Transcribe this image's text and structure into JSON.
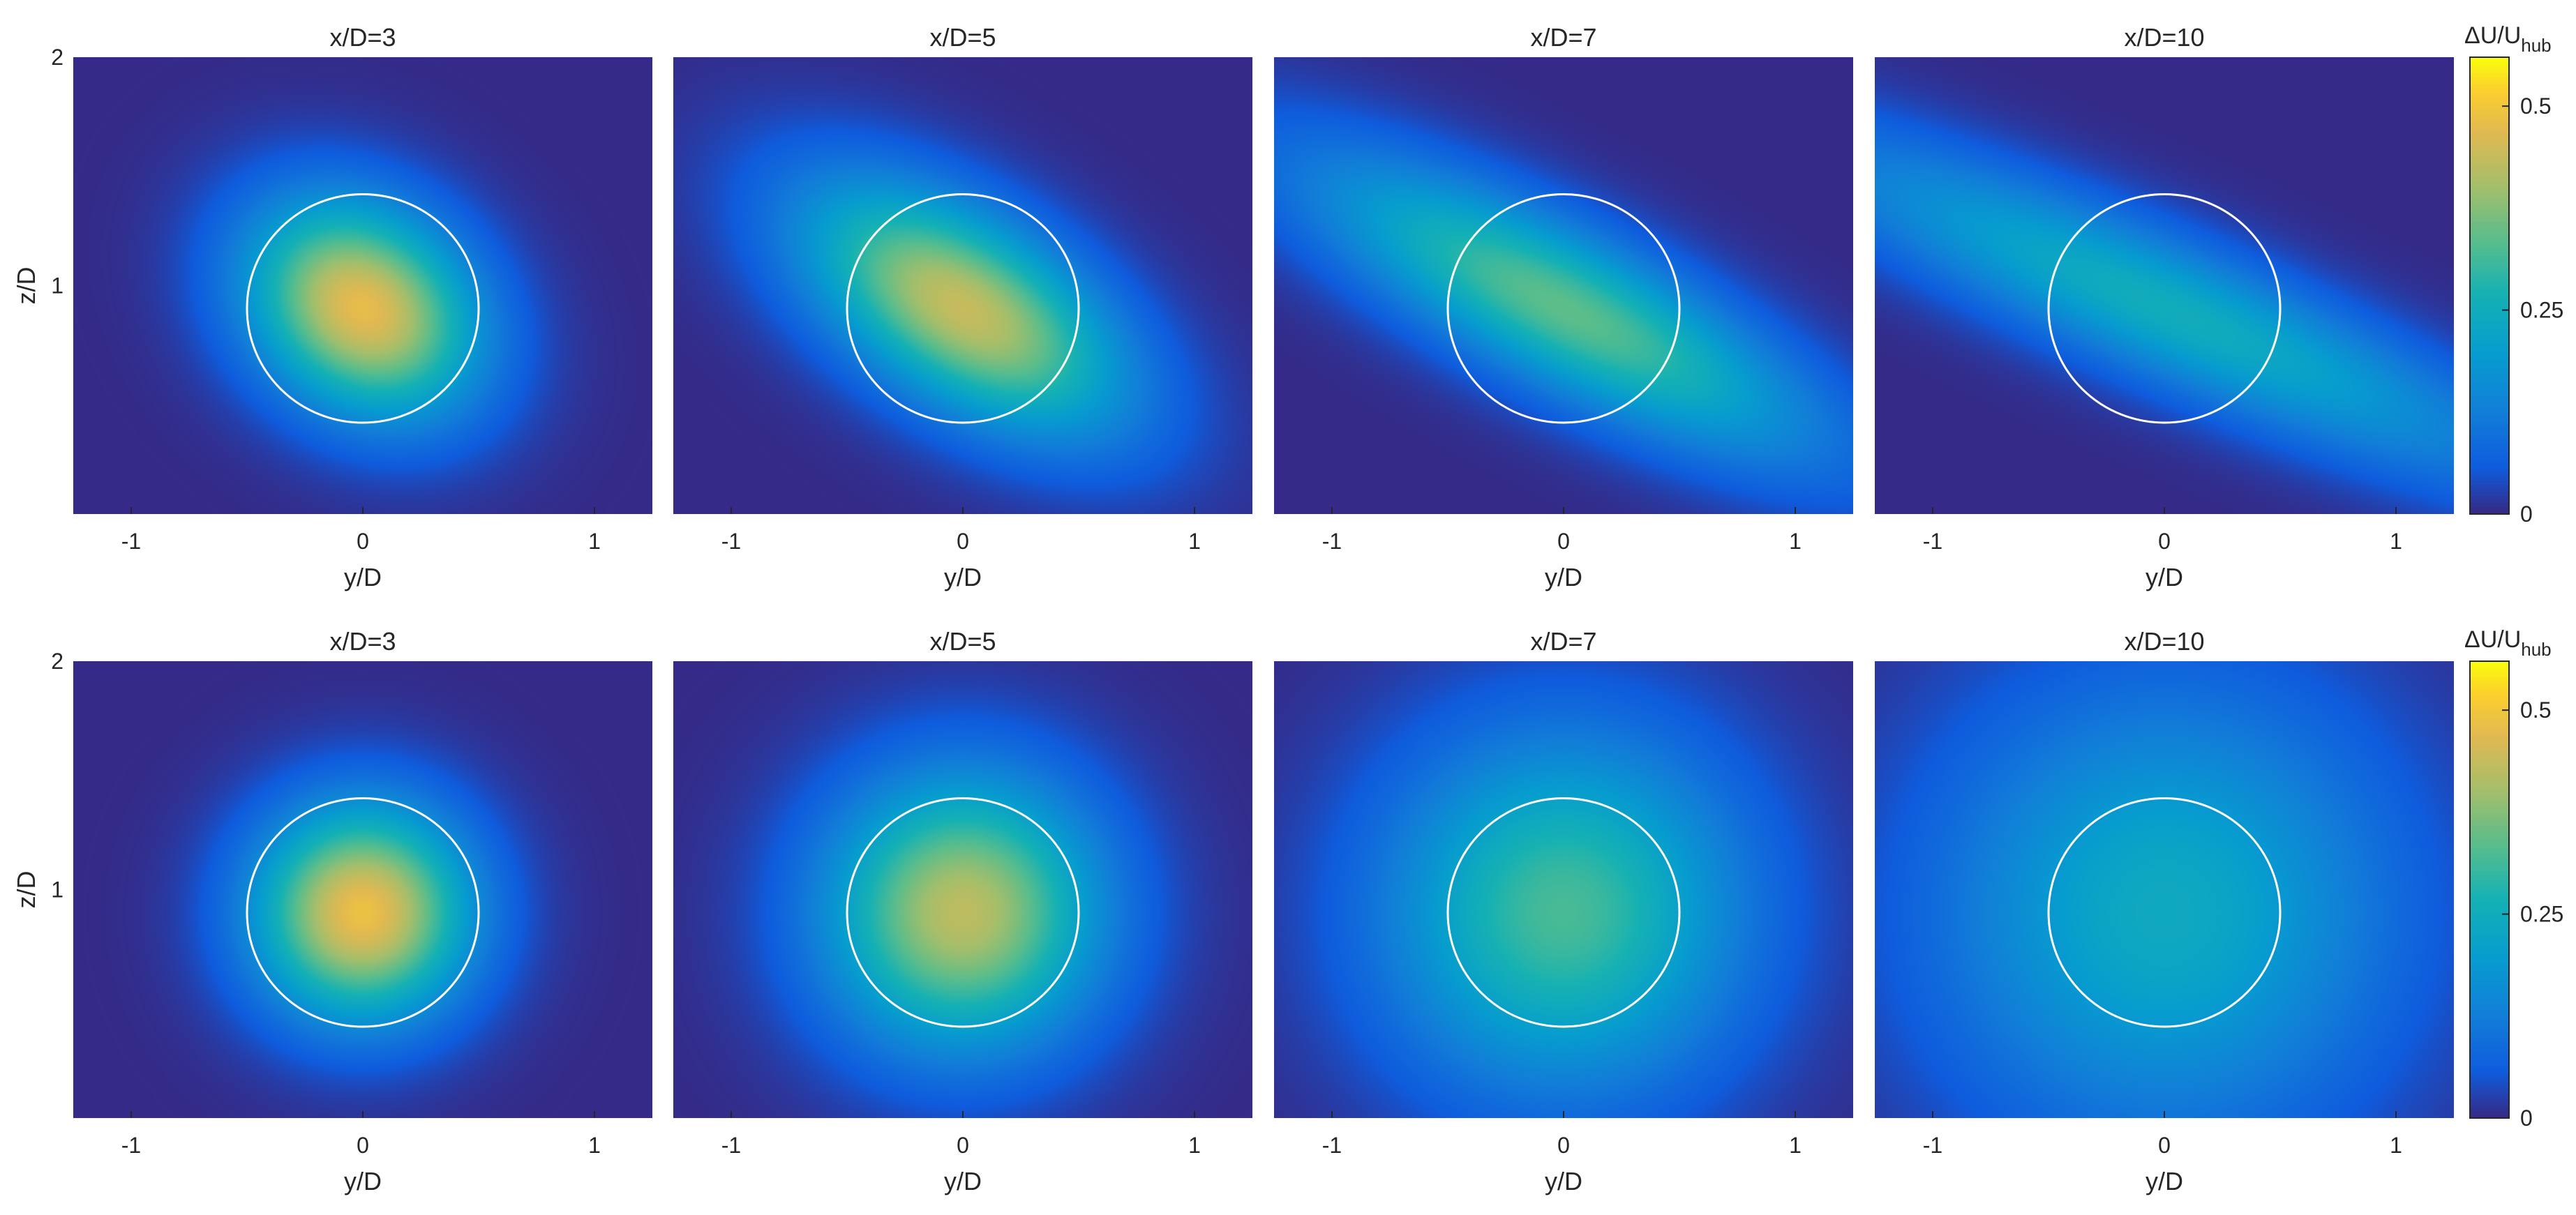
{
  "chart_data": {
    "type": "heatmap",
    "colormap": "parula",
    "xlabel": "y/D",
    "ylabel": "z/D",
    "xlim": [
      -1.25,
      1.25
    ],
    "ylim": [
      0,
      2
    ],
    "x_ticks": [
      -1,
      0,
      1
    ],
    "x_tick_labels": [
      "-1",
      "0",
      "1"
    ],
    "y_ticks": [
      1,
      2
    ],
    "y_tick_labels": [
      "1",
      "2"
    ],
    "rotor": {
      "center_y": 0,
      "center_z": 0.9,
      "radius": 0.5,
      "color": "#ffffff"
    },
    "colorbar": {
      "label_main": "ΔU/U",
      "label_sub": "hub",
      "range": [
        0,
        0.56
      ],
      "ticks": [
        0,
        0.25,
        0.5
      ],
      "tick_labels": [
        "0",
        "0.25",
        "0.5"
      ]
    },
    "rows": [
      {
        "panels": [
          {
            "title": "x/D=3",
            "peak": 0.48,
            "center_y": 0.0,
            "center_z": 0.9,
            "sigma_major": 0.38,
            "sigma_minor": 0.3,
            "angle_deg": -38
          },
          {
            "title": "x/D=5",
            "peak": 0.44,
            "center_y": 0.0,
            "center_z": 0.9,
            "sigma_major": 0.55,
            "sigma_minor": 0.28,
            "angle_deg": -33
          },
          {
            "title": "x/D=7",
            "peak": 0.34,
            "center_y": 0.0,
            "center_z": 0.9,
            "sigma_major": 0.85,
            "sigma_minor": 0.24,
            "angle_deg": -28
          },
          {
            "title": "x/D=10",
            "peak": 0.25,
            "center_y": 0.0,
            "center_z": 0.9,
            "sigma_major": 1.2,
            "sigma_minor": 0.22,
            "angle_deg": -24
          }
        ]
      },
      {
        "panels": [
          {
            "title": "x/D=3",
            "peak": 0.49,
            "center_y": 0.0,
            "center_z": 0.9,
            "sigma_major": 0.33,
            "sigma_minor": 0.33,
            "angle_deg": 0
          },
          {
            "title": "x/D=5",
            "peak": 0.43,
            "center_y": 0.0,
            "center_z": 0.9,
            "sigma_major": 0.42,
            "sigma_minor": 0.42,
            "angle_deg": 0
          },
          {
            "title": "x/D=7",
            "peak": 0.32,
            "center_y": 0.0,
            "center_z": 0.9,
            "sigma_major": 0.55,
            "sigma_minor": 0.55,
            "angle_deg": 0
          },
          {
            "title": "x/D=10",
            "peak": 0.24,
            "center_y": 0.0,
            "center_z": 0.9,
            "sigma_major": 0.7,
            "sigma_minor": 0.7,
            "angle_deg": 0
          }
        ]
      }
    ]
  }
}
